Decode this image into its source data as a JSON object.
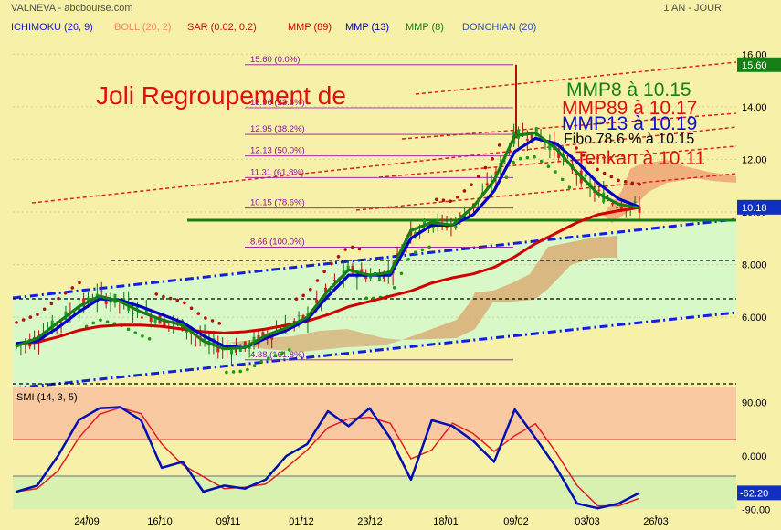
{
  "header": {
    "ticker": "VALNEVA - abcbourse.com",
    "period": "1 AN - JOUR"
  },
  "legend": [
    {
      "label": "ICHIMOKU (26, 9)",
      "color": "#1a1ad0"
    },
    {
      "label": "BOLL (20, 2)",
      "color": "#f08a6a"
    },
    {
      "label": "SAR (0.02, 0.2)",
      "color": "#c01010"
    },
    {
      "label": "MMP (89)",
      "color": "#d00000"
    },
    {
      "label": "MMP (13)",
      "color": "#0000c8"
    },
    {
      "label": "MMP (8)",
      "color": "#168016"
    },
    {
      "label": "DONCHIAN (20)",
      "color": "#3050c0"
    }
  ],
  "annotations": {
    "title": "Joli Regroupement de",
    "mmp8": "MMP8  à 10.15",
    "mmp89": "MMP89 à 10.17",
    "mmp13": "MMP13 à 10.19",
    "fibo": "Fibo 78.6 % à 10.15",
    "tenkan": "Tenkan à 10.11"
  },
  "colors": {
    "green": "#168016",
    "red": "#e01010",
    "blue": "#1010d0",
    "fibo_text": "#9010a0"
  },
  "chart_data": [
    {
      "type": "line",
      "panel": "price",
      "y_ticks": [
        "16.00",
        "14.00",
        "12.00",
        "10.00",
        "8.000",
        "6.000"
      ],
      "y_values": [
        16,
        14,
        12,
        10,
        8,
        6
      ],
      "ylim": [
        3.4,
        16.6
      ],
      "x_labels": [
        "24/09",
        "16/10",
        "09/11",
        "01/12",
        "23/12",
        "18/01",
        "09/02",
        "03/03",
        "26/03"
      ],
      "price_tags": [
        {
          "label": "15.60",
          "value": 15.6
        },
        {
          "label": "10.18",
          "value": 10.18
        }
      ],
      "fibonacci": [
        {
          "label": "15.60  (0.0%)",
          "value": 15.6
        },
        {
          "label": "13.96  (23.6%)",
          "value": 13.96
        },
        {
          "label": "12.95  (38.2%)",
          "value": 12.95
        },
        {
          "label": "12.13  (50.0%)",
          "value": 12.13
        },
        {
          "label": "11.31  (61.8%)",
          "value": 11.31
        },
        {
          "label": "10.15  (78.6%)",
          "value": 10.15
        },
        {
          "label": "8.66  (100.0%)",
          "value": 8.66
        },
        {
          "label": "4.38  (161.8%)",
          "value": 4.38
        }
      ],
      "series": [
        {
          "name": "MMP (8)",
          "color": "#168016",
          "values": [
            4.9,
            5.2,
            5.8,
            6.4,
            6.8,
            6.6,
            6.2,
            5.9,
            5.7,
            5.1,
            4.8,
            4.85,
            5.3,
            5.6,
            6.0,
            7.0,
            7.8,
            7.6,
            7.7,
            9.3,
            9.6,
            9.5,
            10.2,
            11.2,
            12.9,
            13.0,
            12.4,
            11.5,
            10.7,
            10.3,
            10.15
          ]
        },
        {
          "name": "MMP (13)",
          "color": "#0000c8",
          "values": [
            5.0,
            5.1,
            5.6,
            6.2,
            6.7,
            6.65,
            6.4,
            6.1,
            5.8,
            5.3,
            4.9,
            4.85,
            5.2,
            5.5,
            5.9,
            6.8,
            7.6,
            7.6,
            7.6,
            9.0,
            9.5,
            9.5,
            9.9,
            10.8,
            12.3,
            12.8,
            12.6,
            11.9,
            11.1,
            10.5,
            10.19
          ]
        },
        {
          "name": "MMP (89)",
          "color": "#d00000",
          "values": [
            5.0,
            5.05,
            5.25,
            5.5,
            5.65,
            5.7,
            5.7,
            5.65,
            5.55,
            5.45,
            5.4,
            5.45,
            5.55,
            5.7,
            5.85,
            6.1,
            6.4,
            6.6,
            6.8,
            7.0,
            7.3,
            7.5,
            7.65,
            7.9,
            8.3,
            8.8,
            9.2,
            9.6,
            9.9,
            10.05,
            10.17
          ]
        }
      ]
    },
    {
      "type": "line",
      "panel": "indicator",
      "title": "SMI (14, 3, 5)",
      "y_ticks": [
        "90.00",
        "0.000",
        "-90.00"
      ],
      "y_values": [
        90,
        0,
        -90
      ],
      "ylim": [
        -100,
        115
      ],
      "current_tag": {
        "label": "-62.20",
        "value": -62.2
      },
      "series": [
        {
          "name": "SMI",
          "color": "#0010b0",
          "values": [
            -60,
            -50,
            0,
            60,
            80,
            82,
            60,
            -20,
            -10,
            -60,
            -50,
            -55,
            -40,
            0,
            20,
            75,
            50,
            80,
            30,
            -40,
            60,
            50,
            25,
            -10,
            78,
            30,
            -20,
            -80,
            -88,
            -80,
            -62.2
          ]
        }
      ]
    }
  ]
}
